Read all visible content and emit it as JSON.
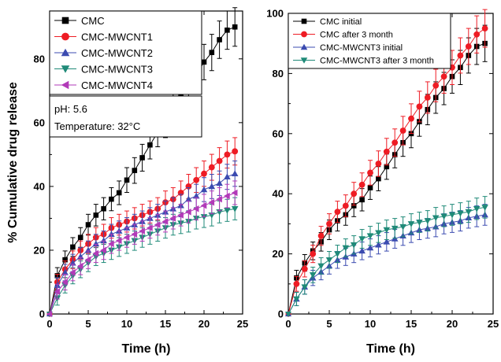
{
  "colors": {
    "black": "#000000",
    "red": "#ee1c24",
    "blue": "#3b4bb0",
    "teal": "#1f8a78",
    "purple": "#b23ab8"
  },
  "chart_data": [
    {
      "type": "line",
      "xlabel": "Time (h)",
      "ylabel": "% Cumulative drug release",
      "xlim": [
        0,
        25
      ],
      "ylim": [
        0,
        95
      ],
      "xticks": [
        "0",
        "5",
        "10",
        "15",
        "20",
        "25"
      ],
      "yticks": [
        "0",
        "20",
        "40",
        "60",
        "80"
      ],
      "legend_position": "top-left",
      "annotation": {
        "ph": "pH: 5.6",
        "temperature": "Temperature: 32",
        "temperature_unit": "°C"
      },
      "x": [
        0,
        1,
        2,
        3,
        4,
        5,
        6,
        7,
        8,
        9,
        10,
        11,
        12,
        13,
        14,
        15,
        16,
        17,
        18,
        19,
        20,
        21,
        22,
        23,
        24
      ],
      "series": [
        {
          "name": "CMC",
          "marker": "square",
          "color": "#000000",
          "values": [
            0,
            12,
            17,
            21,
            24,
            28,
            31,
            33,
            36,
            38,
            42,
            45,
            49,
            53,
            57,
            60,
            64,
            68,
            72,
            75,
            79,
            82,
            86,
            89,
            90
          ]
        },
        {
          "name": "CMC-MWCNT1",
          "marker": "circle",
          "color": "#ee1c24",
          "values": [
            0,
            10,
            14,
            17,
            20,
            22,
            24,
            25,
            27,
            28,
            29,
            30,
            31,
            32,
            33,
            35,
            36,
            38,
            40,
            42,
            44,
            46,
            48,
            50,
            51
          ]
        },
        {
          "name": "CMC-MWCNT2",
          "marker": "triangle-up",
          "color": "#3b4bb0",
          "values": [
            0,
            9,
            13,
            16,
            18,
            20,
            22,
            23,
            25,
            26,
            27,
            28,
            29,
            30,
            31,
            32,
            33,
            34,
            36,
            37,
            39,
            40,
            41,
            43,
            44
          ]
        },
        {
          "name": "CMC-MWCNT3",
          "marker": "triangle-down",
          "color": "#1f8a78",
          "values": [
            0,
            5,
            9,
            12,
            14,
            16,
            18,
            19,
            20,
            21,
            22,
            23,
            24,
            25,
            26,
            27,
            28,
            28.5,
            29,
            30,
            30.5,
            31,
            32,
            32.5,
            33
          ]
        },
        {
          "name": "CMC-MWCNT4",
          "marker": "triangle-left",
          "color": "#b23ab8",
          "values": [
            0,
            7,
            10,
            13,
            15,
            17,
            19,
            20,
            22,
            23,
            24,
            25,
            26,
            27,
            28,
            29,
            30,
            31,
            32,
            33,
            34,
            35,
            36,
            37,
            38
          ]
        }
      ]
    },
    {
      "type": "line",
      "xlabel": "Time (h)",
      "ylabel": "",
      "xlim": [
        0,
        25
      ],
      "ylim": [
        0,
        100
      ],
      "xticks": [
        "0",
        "5",
        "10",
        "15",
        "20",
        "25"
      ],
      "yticks": [
        "0",
        "20",
        "40",
        "60",
        "80",
        "100"
      ],
      "legend_position": "top-left",
      "x": [
        0,
        1,
        2,
        3,
        4,
        5,
        6,
        7,
        8,
        9,
        10,
        11,
        12,
        13,
        14,
        15,
        16,
        17,
        18,
        19,
        20,
        21,
        22,
        23,
        24
      ],
      "series": [
        {
          "name": "CMC initial",
          "marker": "square",
          "color": "#000000",
          "values": [
            0,
            12,
            17,
            21,
            24,
            28,
            31,
            33,
            36,
            38,
            42,
            45,
            49,
            53,
            57,
            60,
            64,
            68,
            72,
            75,
            79,
            82,
            86,
            89,
            90
          ]
        },
        {
          "name": "CMC after 3 month",
          "marker": "circle",
          "color": "#ee1c24",
          "values": [
            0,
            10,
            15,
            20,
            26,
            30,
            34,
            36,
            40,
            43,
            47,
            50,
            54,
            57,
            61,
            65,
            69,
            72,
            76,
            79,
            82,
            86,
            89,
            93,
            95
          ]
        },
        {
          "name": "CMC-MWCNT3 initial",
          "marker": "triangle-up",
          "color": "#3b4bb0",
          "values": [
            0,
            5,
            9,
            12,
            14,
            16,
            18,
            19,
            20,
            21,
            22,
            23,
            24,
            25,
            26,
            27,
            28,
            28.5,
            29,
            30,
            30.5,
            31,
            32,
            32.5,
            33
          ]
        },
        {
          "name": "CMC-MWCNT3 after 3 month",
          "marker": "triangle-down",
          "color": "#1f8a78",
          "values": [
            0,
            5,
            9,
            13,
            16,
            18,
            20,
            22,
            23,
            25,
            26,
            27,
            28,
            28.5,
            29,
            30,
            30.5,
            31,
            32,
            32.5,
            33,
            33.5,
            34,
            35,
            35.5
          ]
        }
      ]
    }
  ]
}
